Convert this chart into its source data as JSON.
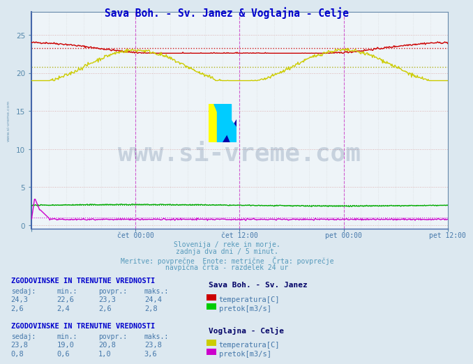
{
  "title": "Sava Boh. - Sv. Janez & Voglajna - Celje",
  "title_color": "#0000cc",
  "bg_color": "#dce8f0",
  "plot_bg_color": "#eef4f8",
  "grid_color": "#c8c8c8",
  "grid_color_pink": "#e8b0b0",
  "xlabel_ticks": [
    "čet 00:00",
    "čet 12:00",
    "pet 00:00",
    "pet 12:00"
  ],
  "ymin": -0.5,
  "ymax": 28,
  "n_points": 576,
  "subtitle_lines": [
    "Slovenija / reke in morje.",
    "zadnja dva dni / 5 minut.",
    "Meritve: povprečne  Enote: metrične  Črta: povprečje",
    "navpična črta - razdelek 24 ur"
  ],
  "subtitle_color": "#5599bb",
  "watermark_text": "www.si-vreme.com",
  "watermark_color": "#1a3a6a",
  "watermark_alpha": 0.18,
  "section1_title": "ZGODOVINSKE IN TRENUTNE VREDNOSTI",
  "section1_station": "Sava Boh. - Sv. Janez",
  "section1_header": [
    "sedaj:",
    "min.:",
    "povpr.:",
    "maks.:"
  ],
  "section1_temp": [
    24.3,
    22.6,
    23.3,
    24.4
  ],
  "section1_pretok": [
    2.6,
    2.4,
    2.6,
    2.8
  ],
  "section1_temp_color": "#cc0000",
  "section1_pretok_color": "#00cc00",
  "section2_title": "ZGODOVINSKE IN TRENUTNE VREDNOSTI",
  "section2_station": "Voglajna - Celje",
  "section2_header": [
    "sedaj:",
    "min.:",
    "povpr.:",
    "maks.:"
  ],
  "section2_temp": [
    23.8,
    19.0,
    20.8,
    23.8
  ],
  "section2_pretok": [
    0.8,
    0.6,
    1.0,
    3.6
  ],
  "section2_temp_color": "#cccc00",
  "section2_pretok_color": "#cc00cc",
  "sava_temp_avg": 23.3,
  "sava_temp_min": 22.6,
  "sava_temp_max": 24.4,
  "sava_pretok_avg": 2.6,
  "sava_pretok_min": 2.4,
  "sava_pretok_max": 2.8,
  "voglajna_temp_avg": 20.8,
  "voglajna_temp_min": 19.0,
  "voglajna_temp_max": 23.8,
  "voglajna_pretok_avg": 1.0,
  "voglajna_pretok_min": 0.6,
  "voglajna_pretok_max": 3.6,
  "text_color": "#4477aa",
  "axis_color": "#5588aa",
  "border_color": "#6688aa"
}
